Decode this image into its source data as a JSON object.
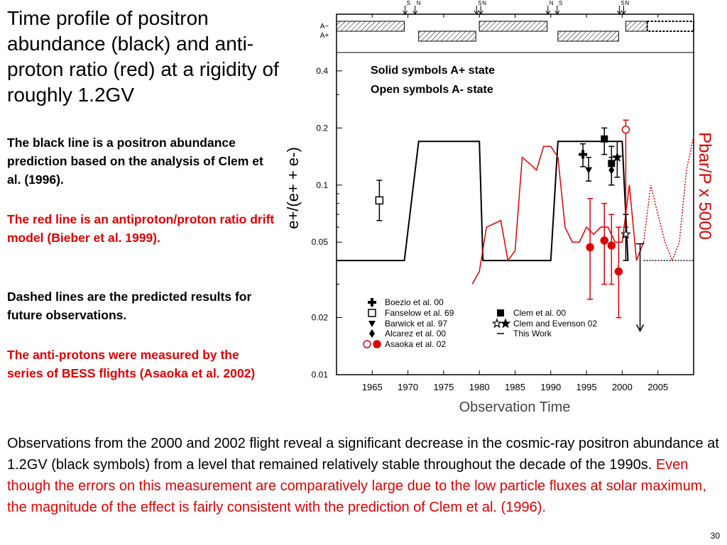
{
  "slide": {
    "title": "Time profile of positron abundance (black) and anti-proton ratio (red) at a rigidity of roughly 1.2GV",
    "para1": "The black line is a positron abundance prediction based on the analysis of Clem et al. (1996).",
    "para2": "The red line is an antiproton/proton ratio drift model (Bieber et al. 1999).",
    "para3": "Dashed lines are the predicted results for future observations.",
    "para4": "The anti-protons were measured by the series of BESS flights (Asaoka et al. 2002)",
    "bottom_black": "Observations from the 2000 and 2002 flight reveal a significant decrease in the cosmic-ray positron abundance at 1.2GV (black symbols) from a level that remained relatively stable throughout the decade of the 1990s.",
    "bottom_red": "Even though the errors on this measurement are comparatively large due to the low particle fluxes at solar maximum, the magnitude of the effect is fairly consistent with the prediction of Clem et al. (1996).",
    "page_number": "30"
  },
  "chart_data": {
    "type": "scatter",
    "xlabel": "Observation Time",
    "ylabel_left": "e+/(e+ + e-)",
    "ylabel_right": "Pbar/P x 5000",
    "ylim": [
      0.01,
      0.5
    ],
    "y_scale": "log",
    "xlim": [
      1960,
      2010
    ],
    "xticks": [
      "1965",
      "1970",
      "1975",
      "1980",
      "1985",
      "1990",
      "1995",
      "2000",
      "2005"
    ],
    "yticks": [
      "0.4",
      "0.2",
      "0.1",
      "0.05",
      "0.02",
      "0.01"
    ],
    "annotation": "Solid symbols  A+ state Open symbols A- state",
    "polarity_labels": [
      "A−",
      "A+"
    ],
    "polarity_bars": [
      {
        "state": "A-",
        "start": 1960,
        "end": 1969.5
      },
      {
        "state": "A+",
        "start": 1971.5,
        "end": 1979.5
      },
      {
        "state": "A-",
        "start": 1980,
        "end": 1989.5
      },
      {
        "state": "A+",
        "start": 1991,
        "end": 1999.5
      },
      {
        "state": "A-",
        "start": 2000.5,
        "end": 2003.5
      },
      {
        "state": "A-",
        "start": 2003.5,
        "end": 2010,
        "predicted": true
      }
    ],
    "reversal_markers": [
      {
        "x": 1969.6,
        "label": "S"
      },
      {
        "x": 1971.0,
        "label": "N"
      },
      {
        "x": 1979.6,
        "label": "S"
      },
      {
        "x": 1980.2,
        "label": "N"
      },
      {
        "x": 1989.6,
        "label": "N"
      },
      {
        "x": 1990.9,
        "label": "S"
      },
      {
        "x": 1999.6,
        "label": "S"
      },
      {
        "x": 2000.2,
        "label": "N"
      }
    ],
    "model_black": [
      [
        1960,
        0.04
      ],
      [
        1969.5,
        0.04
      ],
      [
        1971.5,
        0.17
      ],
      [
        1980,
        0.17
      ],
      [
        1980.5,
        0.04
      ],
      [
        1990,
        0.04
      ],
      [
        1991,
        0.17
      ],
      [
        2000,
        0.17
      ],
      [
        2000.8,
        0.04
      ],
      [
        2010,
        0.04
      ]
    ],
    "model_red": [
      [
        1979,
        0.03
      ],
      [
        1980,
        0.035
      ],
      [
        1981,
        0.06
      ],
      [
        1983,
        0.065
      ],
      [
        1984,
        0.04
      ],
      [
        1985,
        0.045
      ],
      [
        1986,
        0.14
      ],
      [
        1987,
        0.13
      ],
      [
        1988,
        0.12
      ],
      [
        1989,
        0.16
      ],
      [
        1990,
        0.16
      ],
      [
        1991,
        0.14
      ],
      [
        1992,
        0.06
      ],
      [
        1993,
        0.05
      ],
      [
        1994,
        0.05
      ],
      [
        1995,
        0.06
      ],
      [
        1996,
        0.055
      ],
      [
        1997,
        0.06
      ],
      [
        1998,
        0.06
      ],
      [
        1999,
        0.05
      ],
      [
        2000,
        0.05
      ],
      [
        2001,
        0.1
      ],
      [
        2002,
        0.04
      ],
      [
        2003,
        0.05
      ],
      [
        2004,
        0.1
      ],
      [
        2005,
        0.07
      ],
      [
        2006,
        0.05
      ],
      [
        2007,
        0.04
      ],
      [
        2008,
        0.05
      ],
      [
        2009,
        0.12
      ],
      [
        2010,
        0.18
      ]
    ],
    "series": [
      {
        "name": "Boezio et al. 00",
        "marker": "cross-filled",
        "color": "#000000",
        "points": [
          {
            "x": 1994.5,
            "y": 0.145,
            "lo": 0.125,
            "hi": 0.165
          }
        ]
      },
      {
        "name": "Fanselow et al. 69",
        "marker": "square-open",
        "color": "#000000",
        "points": [
          {
            "x": 1966,
            "y": 0.083,
            "lo": 0.065,
            "hi": 0.106
          }
        ]
      },
      {
        "name": "Barwick et al. 97",
        "marker": "triangle-down-filled",
        "color": "#000000",
        "points": [
          {
            "x": 1995.3,
            "y": 0.12,
            "lo": 0.105,
            "hi": 0.14
          }
        ]
      },
      {
        "name": "Alcarez et al. 00",
        "marker": "diamond-filled",
        "color": "#000000",
        "points": [
          {
            "x": 1998.5,
            "y": 0.12,
            "lo": 0.1,
            "hi": 0.14
          }
        ]
      },
      {
        "name": "Asaoka et al. 02",
        "marker": "circle",
        "color": "#e00000",
        "points": [
          {
            "x": 1995.5,
            "y": 0.047,
            "lo": 0.025,
            "hi": 0.085
          },
          {
            "x": 1997.5,
            "y": 0.051,
            "lo": 0.03,
            "hi": 0.08
          },
          {
            "x": 1998.5,
            "y": 0.048,
            "lo": 0.03,
            "hi": 0.07
          },
          {
            "x": 1999.5,
            "y": 0.035,
            "lo": 0.02,
            "hi": 0.06
          },
          {
            "x": 2000.5,
            "y": 0.196,
            "lo": 0.06,
            "hi": 0.22,
            "open": true
          }
        ]
      },
      {
        "name": "Clem et al. 00",
        "marker": "square-filled",
        "color": "#000000",
        "points": [
          {
            "x": 1997.5,
            "y": 0.175,
            "lo": 0.145,
            "hi": 0.2
          },
          {
            "x": 1998.5,
            "y": 0.13,
            "lo": 0.1,
            "hi": 0.16
          }
        ]
      },
      {
        "name": "Clem and Evenson 02",
        "marker": "star",
        "color": "#000000",
        "points": [
          {
            "x": 1999.3,
            "y": 0.14,
            "lo": 0.11,
            "hi": 0.17
          },
          {
            "x": 2000.5,
            "y": 0.055,
            "lo": 0.04,
            "hi": 0.07,
            "open": true
          }
        ]
      },
      {
        "name": "This Work",
        "marker": "upper-limit",
        "color": "#000000",
        "points": [
          {
            "x": 2002.5,
            "y": 0.017,
            "hi": 0.049
          }
        ]
      }
    ]
  }
}
